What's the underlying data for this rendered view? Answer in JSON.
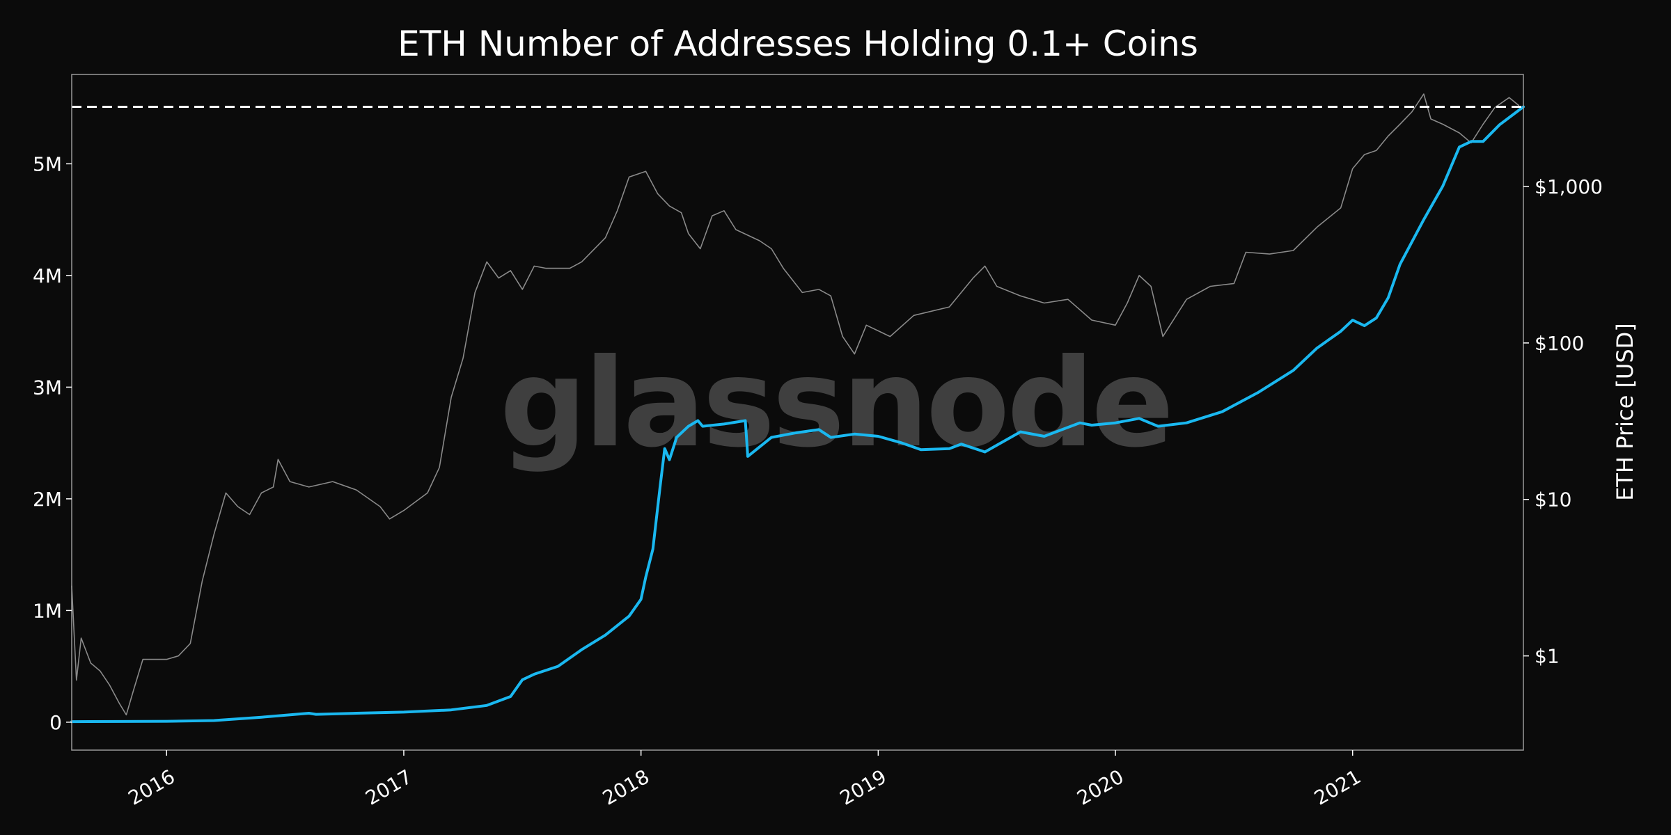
{
  "chart_data": {
    "type": "line",
    "title": "ETH Number of Addresses Holding 0.1+ Coins",
    "watermark": "glassnode",
    "xlabel": "",
    "ylabel_left": "",
    "ylabel_right": "ETH Price [USD]",
    "x_ticks": [
      {
        "value": 2016.0,
        "label": "2016"
      },
      {
        "value": 2017.0,
        "label": "2017"
      },
      {
        "value": 2018.0,
        "label": "2018"
      },
      {
        "value": 2019.0,
        "label": "2019"
      },
      {
        "value": 2020.0,
        "label": "2020"
      },
      {
        "value": 2021.0,
        "label": "2021"
      }
    ],
    "xlim": [
      2015.6,
      2021.72
    ],
    "y_left_ticks": [
      {
        "value": 0,
        "label": "0"
      },
      {
        "value": 1000000,
        "label": "1M"
      },
      {
        "value": 2000000,
        "label": "2M"
      },
      {
        "value": 3000000,
        "label": "3M"
      },
      {
        "value": 4000000,
        "label": "4M"
      },
      {
        "value": 5000000,
        "label": "5M"
      }
    ],
    "ylim_left": [
      -250000,
      5800000
    ],
    "y_right_scale": "log",
    "y_right_ticks": [
      {
        "value": 1,
        "label": "$1"
      },
      {
        "value": 10,
        "label": "$10"
      },
      {
        "value": 100,
        "label": "$100"
      },
      {
        "value": 1000,
        "label": "$1,000"
      }
    ],
    "ylim_right": [
      0.25,
      5200
    ],
    "reference_line": {
      "value": 5510000,
      "style": "dashed",
      "color": "#ffffff"
    },
    "colors": {
      "addresses": "#1ab8f0",
      "price": "#8a8a8a",
      "background": "#0b0b0b",
      "frame": "#9a9a9a"
    },
    "series": [
      {
        "id": "addresses",
        "axis": "left",
        "points": [
          [
            2015.6,
            5000
          ],
          [
            2015.8,
            6000
          ],
          [
            2016.0,
            8000
          ],
          [
            2016.2,
            15000
          ],
          [
            2016.4,
            45000
          ],
          [
            2016.6,
            80000
          ],
          [
            2016.63,
            70000
          ],
          [
            2016.8,
            80000
          ],
          [
            2017.0,
            90000
          ],
          [
            2017.2,
            110000
          ],
          [
            2017.35,
            150000
          ],
          [
            2017.45,
            230000
          ],
          [
            2017.5,
            380000
          ],
          [
            2017.55,
            430000
          ],
          [
            2017.65,
            500000
          ],
          [
            2017.75,
            650000
          ],
          [
            2017.85,
            780000
          ],
          [
            2017.95,
            950000
          ],
          [
            2018.0,
            1100000
          ],
          [
            2018.02,
            1300000
          ],
          [
            2018.05,
            1550000
          ],
          [
            2018.08,
            2100000
          ],
          [
            2018.1,
            2450000
          ],
          [
            2018.12,
            2350000
          ],
          [
            2018.15,
            2550000
          ],
          [
            2018.2,
            2650000
          ],
          [
            2018.24,
            2700000
          ],
          [
            2018.26,
            2650000
          ],
          [
            2018.35,
            2670000
          ],
          [
            2018.44,
            2700000
          ],
          [
            2018.45,
            2380000
          ],
          [
            2018.55,
            2550000
          ],
          [
            2018.65,
            2590000
          ],
          [
            2018.75,
            2620000
          ],
          [
            2018.8,
            2550000
          ],
          [
            2018.9,
            2580000
          ],
          [
            2019.0,
            2560000
          ],
          [
            2019.1,
            2500000
          ],
          [
            2019.18,
            2440000
          ],
          [
            2019.3,
            2450000
          ],
          [
            2019.35,
            2490000
          ],
          [
            2019.45,
            2420000
          ],
          [
            2019.6,
            2600000
          ],
          [
            2019.7,
            2560000
          ],
          [
            2019.85,
            2680000
          ],
          [
            2019.9,
            2660000
          ],
          [
            2020.0,
            2680000
          ],
          [
            2020.1,
            2720000
          ],
          [
            2020.18,
            2650000
          ],
          [
            2020.3,
            2680000
          ],
          [
            2020.45,
            2780000
          ],
          [
            2020.6,
            2950000
          ],
          [
            2020.75,
            3150000
          ],
          [
            2020.85,
            3350000
          ],
          [
            2020.95,
            3500000
          ],
          [
            2021.0,
            3600000
          ],
          [
            2021.05,
            3550000
          ],
          [
            2021.1,
            3620000
          ],
          [
            2021.15,
            3800000
          ],
          [
            2021.2,
            4100000
          ],
          [
            2021.3,
            4500000
          ],
          [
            2021.38,
            4800000
          ],
          [
            2021.45,
            5150000
          ],
          [
            2021.5,
            5200000
          ],
          [
            2021.55,
            5200000
          ],
          [
            2021.62,
            5350000
          ],
          [
            2021.72,
            5510000
          ]
        ]
      },
      {
        "id": "price",
        "axis": "right",
        "points": [
          [
            2015.6,
            2.8
          ],
          [
            2015.62,
            0.7
          ],
          [
            2015.64,
            1.3
          ],
          [
            2015.68,
            0.9
          ],
          [
            2015.72,
            0.8
          ],
          [
            2015.76,
            0.65
          ],
          [
            2015.8,
            0.5
          ],
          [
            2015.83,
            0.42
          ],
          [
            2015.86,
            0.6
          ],
          [
            2015.9,
            0.95
          ],
          [
            2016.0,
            0.95
          ],
          [
            2016.05,
            1.0
          ],
          [
            2016.1,
            1.2
          ],
          [
            2016.15,
            3.0
          ],
          [
            2016.2,
            6.0
          ],
          [
            2016.25,
            11.0
          ],
          [
            2016.3,
            9.0
          ],
          [
            2016.35,
            8.0
          ],
          [
            2016.4,
            11.0
          ],
          [
            2016.45,
            12.0
          ],
          [
            2016.47,
            18.0
          ],
          [
            2016.52,
            13.0
          ],
          [
            2016.6,
            12.0
          ],
          [
            2016.7,
            13.0
          ],
          [
            2016.8,
            11.5
          ],
          [
            2016.9,
            9.0
          ],
          [
            2016.94,
            7.5
          ],
          [
            2017.0,
            8.5
          ],
          [
            2017.1,
            11.0
          ],
          [
            2017.15,
            16.0
          ],
          [
            2017.2,
            45.0
          ],
          [
            2017.25,
            80.0
          ],
          [
            2017.3,
            210.0
          ],
          [
            2017.35,
            330.0
          ],
          [
            2017.4,
            260.0
          ],
          [
            2017.45,
            290.0
          ],
          [
            2017.5,
            220.0
          ],
          [
            2017.55,
            310.0
          ],
          [
            2017.6,
            300.0
          ],
          [
            2017.7,
            300.0
          ],
          [
            2017.75,
            330.0
          ],
          [
            2017.85,
            470.0
          ],
          [
            2017.9,
            700.0
          ],
          [
            2017.95,
            1150.0
          ],
          [
            2018.02,
            1250.0
          ],
          [
            2018.07,
            900.0
          ],
          [
            2018.12,
            750.0
          ],
          [
            2018.17,
            680.0
          ],
          [
            2018.2,
            500.0
          ],
          [
            2018.25,
            400.0
          ],
          [
            2018.3,
            650.0
          ],
          [
            2018.35,
            700.0
          ],
          [
            2018.4,
            530.0
          ],
          [
            2018.5,
            450.0
          ],
          [
            2018.55,
            400.0
          ],
          [
            2018.6,
            300.0
          ],
          [
            2018.68,
            210.0
          ],
          [
            2018.75,
            220.0
          ],
          [
            2018.8,
            200.0
          ],
          [
            2018.85,
            110.0
          ],
          [
            2018.9,
            85.0
          ],
          [
            2018.95,
            130.0
          ],
          [
            2019.05,
            110.0
          ],
          [
            2019.15,
            150.0
          ],
          [
            2019.3,
            170.0
          ],
          [
            2019.4,
            260.0
          ],
          [
            2019.45,
            310.0
          ],
          [
            2019.5,
            230.0
          ],
          [
            2019.6,
            200.0
          ],
          [
            2019.7,
            180.0
          ],
          [
            2019.8,
            190.0
          ],
          [
            2019.9,
            140.0
          ],
          [
            2020.0,
            130.0
          ],
          [
            2020.05,
            180.0
          ],
          [
            2020.1,
            270.0
          ],
          [
            2020.15,
            230.0
          ],
          [
            2020.2,
            110.0
          ],
          [
            2020.3,
            190.0
          ],
          [
            2020.4,
            230.0
          ],
          [
            2020.5,
            240.0
          ],
          [
            2020.55,
            380.0
          ],
          [
            2020.65,
            370.0
          ],
          [
            2020.75,
            390.0
          ],
          [
            2020.85,
            550.0
          ],
          [
            2020.95,
            730.0
          ],
          [
            2021.0,
            1300.0
          ],
          [
            2021.05,
            1600.0
          ],
          [
            2021.1,
            1700.0
          ],
          [
            2021.15,
            2100.0
          ],
          [
            2021.2,
            2500.0
          ],
          [
            2021.25,
            3000.0
          ],
          [
            2021.3,
            3900.0
          ],
          [
            2021.33,
            2700.0
          ],
          [
            2021.38,
            2500.0
          ],
          [
            2021.45,
            2200.0
          ],
          [
            2021.5,
            1900.0
          ],
          [
            2021.55,
            2500.0
          ],
          [
            2021.6,
            3200.0
          ],
          [
            2021.66,
            3700.0
          ],
          [
            2021.7,
            3300.0
          ]
        ]
      }
    ]
  }
}
